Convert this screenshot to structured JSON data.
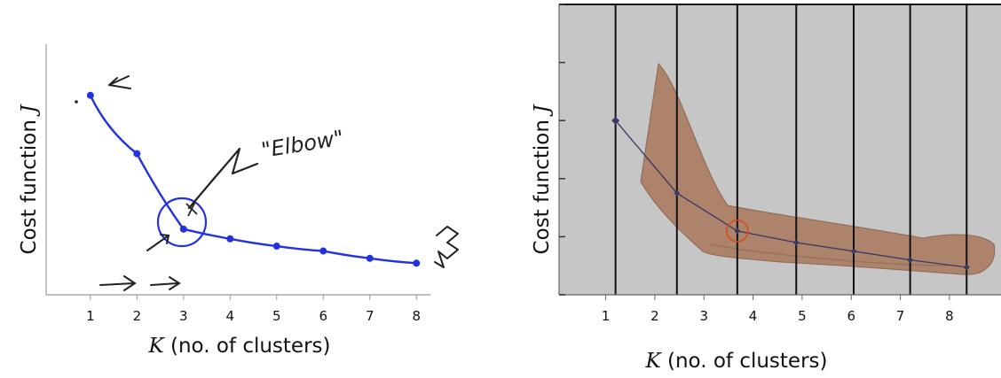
{
  "chart_data": [
    {
      "type": "line",
      "x": [
        1,
        2,
        3,
        4,
        5,
        6,
        7,
        8
      ],
      "y": [
        8.2,
        5.8,
        2.7,
        2.3,
        2.0,
        1.8,
        1.5,
        1.3
      ],
      "xlim": [
        0.05,
        8.3
      ],
      "ylim": [
        0,
        10.3
      ],
      "xticks": [
        "1",
        "2",
        "3",
        "4",
        "5",
        "6",
        "7",
        "8"
      ],
      "xlabel_var": "K",
      "xlabel_rest": " (no. of clusters)",
      "ylabel_text": "Cost function ",
      "ylabel_var": "J",
      "annotation": "\"Elbow\"",
      "line_color": "#2233dd",
      "grid": false
    },
    {
      "type": "line",
      "x": [
        1.2,
        2.45,
        3.68,
        4.88,
        6.05,
        7.2,
        8.35
      ],
      "y": [
        6.0,
        3.5,
        2.2,
        1.8,
        1.5,
        1.2,
        0.95
      ],
      "xlim": [
        0.05,
        9.05
      ],
      "ylim": [
        0,
        10
      ],
      "xticks": [
        "1",
        "2",
        "3",
        "4",
        "5",
        "6",
        "7",
        "8"
      ],
      "yticks": [
        0,
        2,
        4,
        6,
        8,
        10
      ],
      "vertical_lines": [
        1.2,
        2.45,
        3.68,
        4.88,
        6.05,
        7.2,
        8.35
      ],
      "xlabel_var": "K",
      "xlabel_rest": " (no. of clusters)",
      "ylabel_text": "Cost function ",
      "ylabel_var": "J",
      "background": "#c6c6c6",
      "line_color": "#3a3a66",
      "highlight_color": "#d84a1a",
      "grid": false
    }
  ]
}
